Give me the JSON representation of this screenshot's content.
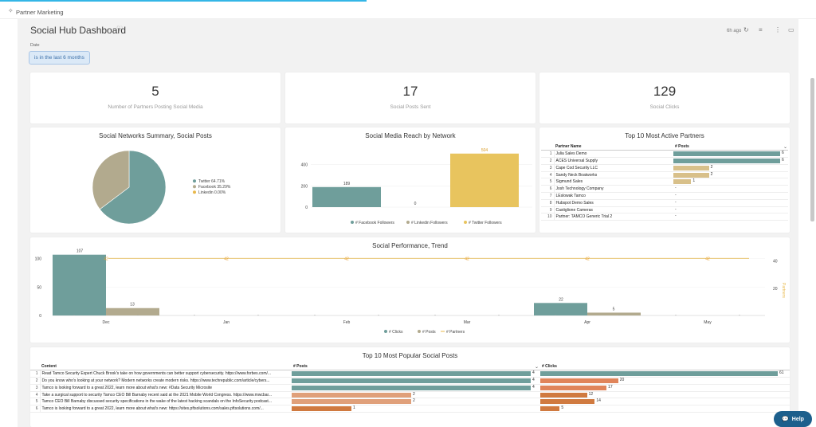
{
  "app": {
    "title": "Partner Marketing"
  },
  "dashboard": {
    "title": "Social Hub Dashboard",
    "updated": "6h ago",
    "filter_label": "Date",
    "filter_value": "is in the last 6 months"
  },
  "kpis": [
    {
      "value": "5",
      "label": "Number of Partners Posting Social Media"
    },
    {
      "value": "17",
      "label": "Social Posts Sent"
    },
    {
      "value": "129",
      "label": "Social Clicks"
    }
  ],
  "pie": {
    "title": "Social Networks Summary, Social Posts",
    "chart_data": {
      "type": "pie",
      "slices": [
        {
          "label": "Twitter",
          "value": 64.71,
          "color": "#6f9e9b"
        },
        {
          "label": "Facebook",
          "value": 35.29,
          "color": "#b2aa8e"
        },
        {
          "label": "Linkedin",
          "value": 0,
          "color": "#e8b84a"
        }
      ]
    },
    "legend": [
      "Twitter 64.71%",
      "Facebook 35.29%",
      "Linkedin 0.00%"
    ]
  },
  "reach": {
    "title": "Social Media Reach by Network",
    "chart_data": {
      "type": "bar",
      "categories": [
        "# Facebook Followers",
        "# Linkedin Followers",
        "# Twitter Followers"
      ],
      "values": [
        189,
        0,
        504
      ],
      "colors": [
        "#6f9e9b",
        "#b2aa8e",
        "#e8c45e"
      ],
      "ylim": [
        0,
        600
      ],
      "yticks": [
        0,
        200,
        400
      ]
    },
    "legend": [
      "# Facebook Followers",
      "# Linkedin Followers",
      "# Twitter Followers"
    ]
  },
  "partners": {
    "title": "Top 10 Most Active Partners",
    "col1": "Partner Name",
    "col2": "# Posts",
    "rows": [
      {
        "n": "1",
        "name": "Julia Sales Demo",
        "posts": 6,
        "label": "6"
      },
      {
        "n": "2",
        "name": "ACES Universal Supply",
        "posts": 6,
        "label": "6"
      },
      {
        "n": "3",
        "name": "Cape Cod Security LLC",
        "posts": 2,
        "label": "2"
      },
      {
        "n": "4",
        "name": "Sandy Neck Boatworks",
        "posts": 2,
        "label": "2"
      },
      {
        "n": "5",
        "name": "Sigmund Sales",
        "posts": 1,
        "label": "1"
      },
      {
        "n": "6",
        "name": "Josh Technology Company",
        "posts": 0,
        "label": "-"
      },
      {
        "n": "7",
        "name": "LEslowak Tamco",
        "posts": 0,
        "label": "-"
      },
      {
        "n": "8",
        "name": "Hubspot Demo Sales",
        "posts": 0,
        "label": "-"
      },
      {
        "n": "9",
        "name": "Castiglione Cameras",
        "posts": 0,
        "label": "-"
      },
      {
        "n": "10",
        "name": "Partner: TAMCO Generic Trial 2",
        "posts": 0,
        "label": "-"
      }
    ],
    "max": 6
  },
  "trend": {
    "title": "Social Performance, Trend",
    "chart_data": {
      "type": "bar",
      "categories": [
        "Dec",
        "Jan",
        "Feb",
        "Mar",
        "Apr",
        "May"
      ],
      "series": [
        {
          "name": "# Clicks",
          "values": [
            107,
            0,
            0,
            0,
            22,
            0
          ],
          "color": "#6f9e9b"
        },
        {
          "name": "# Posts",
          "values": [
            13,
            0,
            0,
            0,
            5,
            0
          ],
          "color": "#b2aa8e"
        },
        {
          "name": "# Partners",
          "type": "line",
          "values": [
            42,
            42,
            42,
            42,
            42,
            42
          ],
          "color": "#e8b84a"
        }
      ],
      "ylim": [
        0,
        115
      ],
      "yticks": [
        0,
        50,
        100
      ],
      "y2lim": [
        0,
        48
      ],
      "y2ticks": [
        20,
        40
      ],
      "y2label": "Partners"
    },
    "bar_labels": [
      "107",
      "13",
      "22",
      "5"
    ],
    "line_labels": [
      "42",
      "42",
      "42",
      "42",
      "42",
      "42"
    ],
    "legend": [
      "# Clicks",
      "# Posts",
      "# Partners"
    ]
  },
  "posts": {
    "title": "Top 10 Most Popular Social Posts",
    "col1": "Content",
    "col2": "# Posts",
    "col3": "# Clicks",
    "rows": [
      {
        "n": "1",
        "content": "Read Tamco Security Expert Chuck Brook's take on how governments can better support cybersecurity. https://www.forbes.com/...",
        "posts": 4,
        "clicks": 61
      },
      {
        "n": "2",
        "content": "Do you know who's looking at your network? Modern networks create modern risks. https://www.techrepublic.com/article/cybers...",
        "posts": 4,
        "clicks": 20
      },
      {
        "n": "3",
        "content": "Tamco is looking forward to a great 2022, learn more about what's new:  #Data Security Microsite",
        "posts": 4,
        "clicks": 17
      },
      {
        "n": "4",
        "content": "Take a surgical support to security Tamco CEO Bill Barnaby recent said at the 2021 Mobile World Congress. https://www.mwcbar...",
        "posts": 2,
        "clicks": 12
      },
      {
        "n": "5",
        "content": "Tamco CEO Bill Barnaby discussed security specifications in the wake of the latest hacking scandals on the InfoSecurity podcast...",
        "posts": 2,
        "clicks": 14
      },
      {
        "n": "6",
        "content": "Tamco is looking forward to a great 2022, learn more about what's new:  https://sites.pftsolutions.com/sales.pftsolutions.com/...",
        "posts": 1,
        "clicks": 5
      }
    ],
    "maxPosts": 4,
    "maxClicks": 61
  },
  "help": {
    "label": "Help"
  }
}
